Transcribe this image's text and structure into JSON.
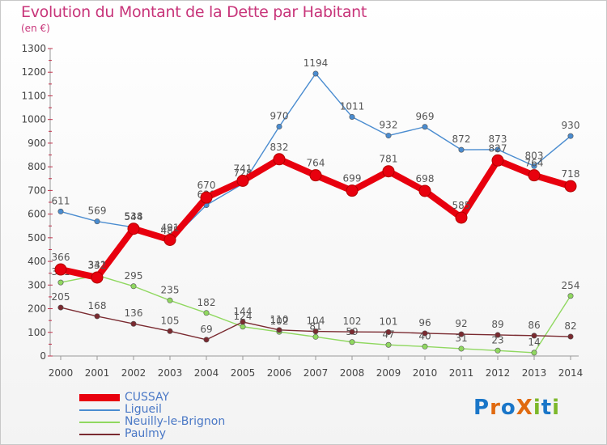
{
  "chart_data": {
    "type": "line",
    "title": "Evolution du Montant de la Dette par Habitant",
    "subtitle": "(en €)",
    "x": [
      "2000",
      "2001",
      "2002",
      "2003",
      "2004",
      "2005",
      "2006",
      "2007",
      "2008",
      "2009",
      "2010",
      "2011",
      "2012",
      "2013",
      "2014"
    ],
    "ylim": [
      0,
      1300
    ],
    "yticks": [
      0,
      100,
      200,
      300,
      400,
      500,
      600,
      700,
      800,
      900,
      1000,
      1100,
      1200,
      1300
    ],
    "grid": false,
    "legend_position": "bottom-left",
    "series": [
      {
        "name": "CUSSAY",
        "color": "#e8000e",
        "emphasis": true,
        "values": [
          366,
          332,
          538,
          491,
          670,
          741,
          832,
          764,
          699,
          781,
          698,
          585,
          827,
          764,
          718
        ]
      },
      {
        "name": "Ligueil",
        "color": "#4a8cd0",
        "values": [
          611,
          569,
          544,
          485,
          638,
          728,
          970,
          1194,
          1011,
          932,
          969,
          872,
          873,
          803,
          930
        ]
      },
      {
        "name": "Neuilly-le-Brignon",
        "color": "#90d860",
        "values": [
          311,
          341,
          295,
          235,
          182,
          124,
          102,
          81,
          59,
          47,
          40,
          31,
          23,
          14,
          254
        ]
      },
      {
        "name": "Paulmy",
        "color": "#7a2a30",
        "values": [
          205,
          168,
          136,
          105,
          69,
          144,
          110,
          104,
          102,
          101,
          96,
          92,
          89,
          86,
          82
        ]
      }
    ]
  },
  "logo": {
    "text": "ProXiti",
    "letters": [
      "P",
      "r",
      "o",
      "X",
      "i",
      "t",
      "i"
    ],
    "colors": [
      "#1a76c8",
      "#e06a10",
      "#1a76c8",
      "#e06a10",
      "#7cb82a",
      "#1a76c8",
      "#7cb82a"
    ]
  }
}
